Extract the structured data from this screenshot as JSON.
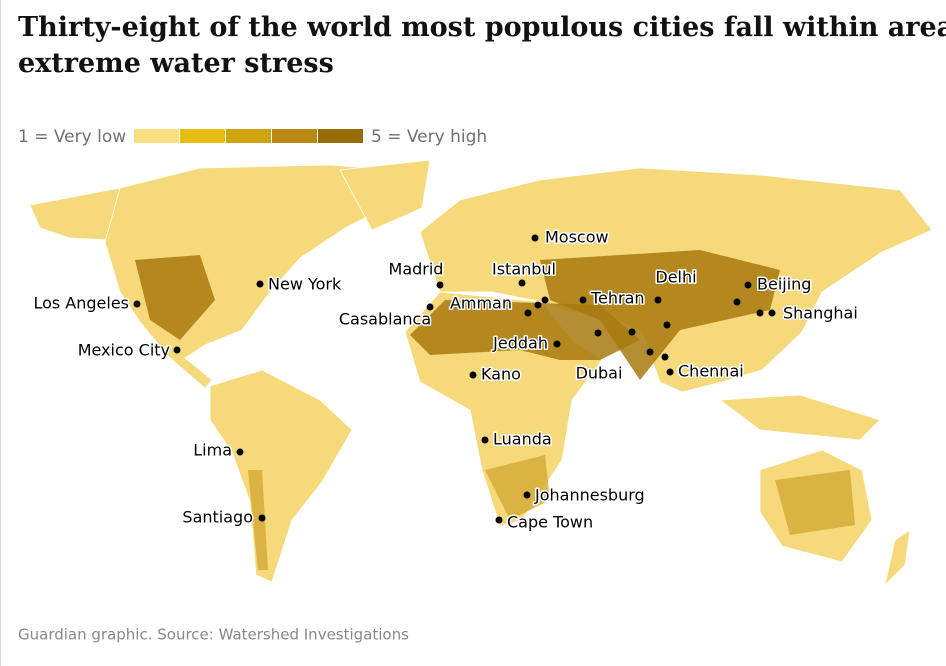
{
  "header": {
    "title": "Thirty-eight of the world most populous cities fall within areas of extreme water stress"
  },
  "legend": {
    "low_label": "1 = Very low",
    "high_label": "5 = Very high",
    "colors": [
      "#f9df7f",
      "#e5bd13",
      "#d0a411",
      "#b98a12",
      "#9a6c08"
    ]
  },
  "cities": [
    "Moscow",
    "Madrid",
    "Istanbul",
    "Delhi",
    "Beijing",
    "Shanghai",
    "Los Angeles",
    "New York",
    "Amman",
    "Tehran",
    "Casablanca",
    "Mexico City",
    "Jeddah",
    "Dubai",
    "Kano",
    "Chennai",
    "Lima",
    "Luanda",
    "Johannesburg",
    "Cape Town",
    "Santiago"
  ],
  "footer": {
    "source": "Guardian graphic. Source: Watershed Investigations"
  }
}
